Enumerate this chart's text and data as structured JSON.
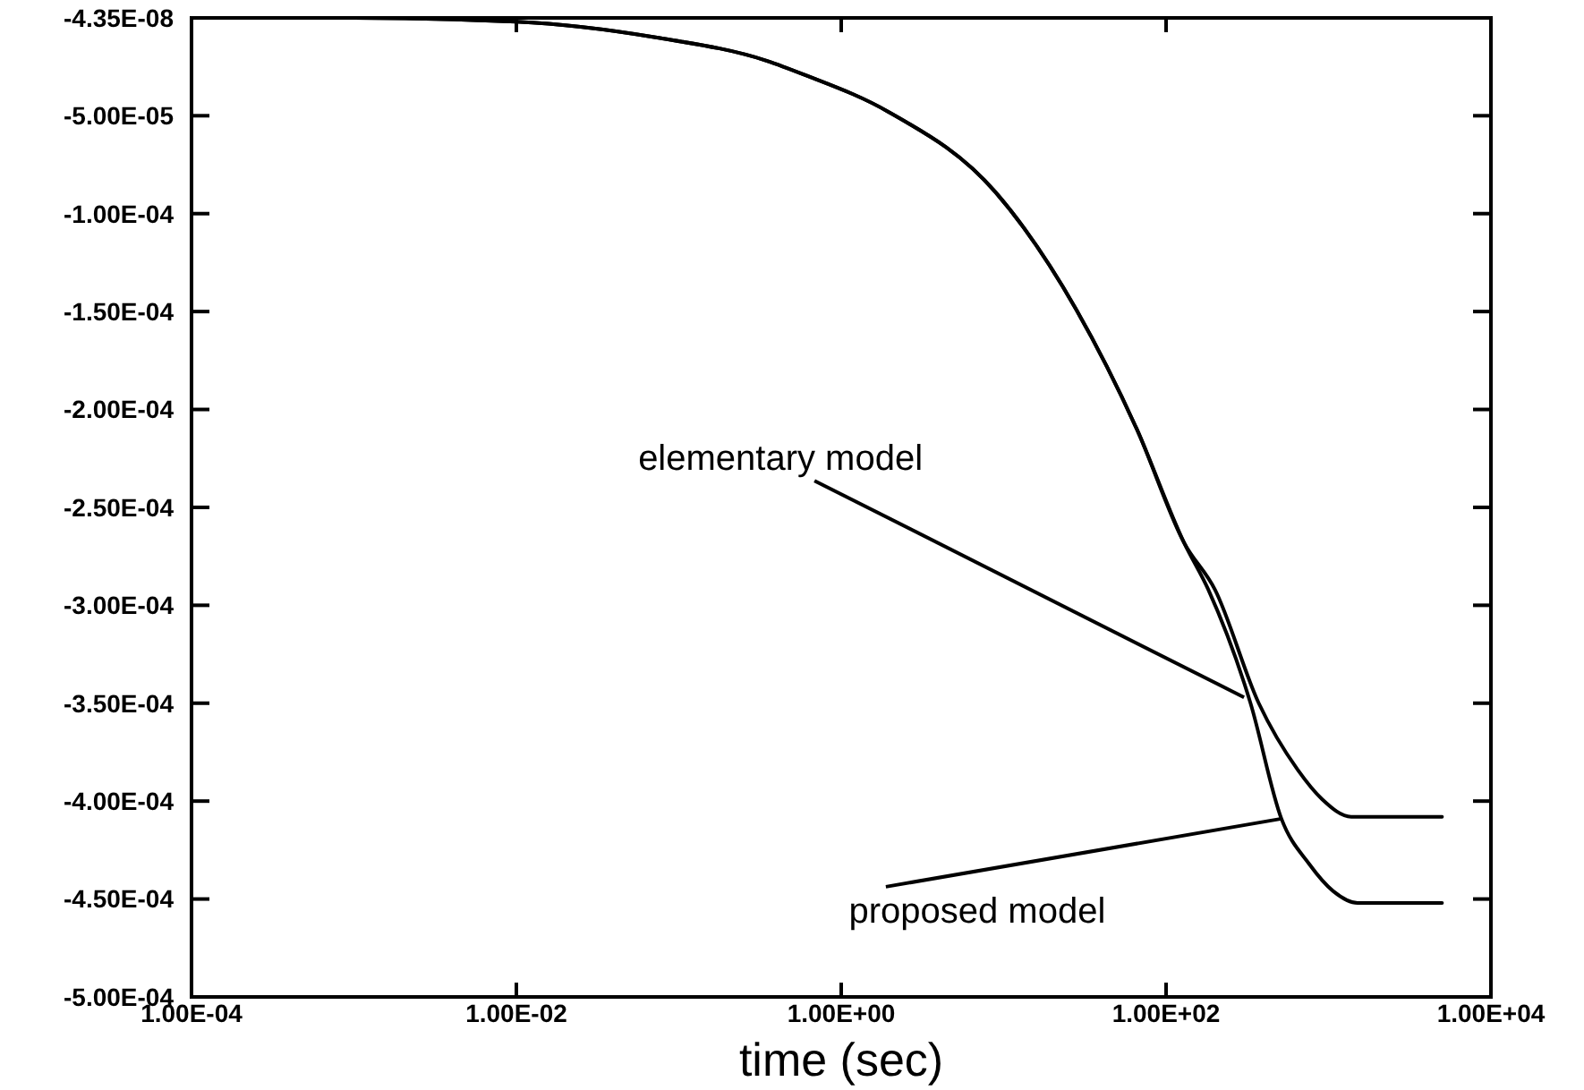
{
  "chart_data": {
    "type": "line",
    "xlabel": "time (sec)",
    "log": "x",
    "xlim": [
      0.0001,
      10000
    ],
    "ylim": [
      -0.0005,
      -4.35e-08
    ],
    "xticks": [
      {
        "value": 0.0001,
        "label": "1.00E-04"
      },
      {
        "value": 0.01,
        "label": "1.00E-02"
      },
      {
        "value": 1,
        "label": "1.00E+00"
      },
      {
        "value": 100,
        "label": "1.00E+02"
      },
      {
        "value": 10000,
        "label": "1.00E+04"
      }
    ],
    "yticks": [
      {
        "value": -4.35e-08,
        "label": "-4.35E-08"
      },
      {
        "value": -5e-05,
        "label": "-5.00E-05"
      },
      {
        "value": -0.0001,
        "label": "-1.00E-04"
      },
      {
        "value": -0.00015,
        "label": "-1.50E-04"
      },
      {
        "value": -0.0002,
        "label": "-2.00E-04"
      },
      {
        "value": -0.00025,
        "label": "-2.50E-04"
      },
      {
        "value": -0.0003,
        "label": "-3.00E-04"
      },
      {
        "value": -0.00035,
        "label": "-3.50E-04"
      },
      {
        "value": -0.0004,
        "label": "-4.00E-04"
      },
      {
        "value": -0.00045,
        "label": "-4.50E-04"
      },
      {
        "value": -0.0005,
        "label": "-5.00E-04"
      }
    ],
    "grid": false,
    "marker": "none",
    "line_style": "solid",
    "series": [
      {
        "color": "#000000",
        "x": [
          0.0001,
          0.001,
          0.01,
          0.072,
          0.35,
          0.59,
          1.95,
          8.9,
          28,
          66,
          129,
          200,
          372,
          646,
          912,
          1380,
          5000
        ],
        "values": [
          -1e-07,
          -1e-07,
          -2e-06,
          -1e-05,
          -2.2e-05,
          -2.9e-05,
          -4.8e-05,
          -8.9e-05,
          -0.000149,
          -0.00021,
          -0.000268,
          -0.000292,
          -0.00035,
          -0.000384,
          -0.000399,
          -0.000408,
          -0.000408
        ]
      },
      {
        "color": "#000000",
        "x": [
          0.0001,
          0.001,
          0.01,
          0.072,
          0.35,
          0.59,
          1.95,
          8.9,
          28,
          66,
          129,
          182,
          331,
          513,
          759,
          1070,
          1510,
          5000
        ],
        "values": [
          -1e-07,
          -1e-07,
          -2e-06,
          -1e-05,
          -2.2e-05,
          -2.9e-05,
          -4.8e-05,
          -8.9e-05,
          -0.000149,
          -0.00021,
          -0.000268,
          -0.000292,
          -0.00035,
          -0.000409,
          -0.000432,
          -0.000446,
          -0.000452,
          -0.000452
        ]
      }
    ],
    "annotations": [
      {
        "text": "elementary model",
        "x": 302,
        "y": -0.000347
      },
      {
        "text": "proposed model",
        "x": 513,
        "y": -0.000409
      }
    ]
  }
}
